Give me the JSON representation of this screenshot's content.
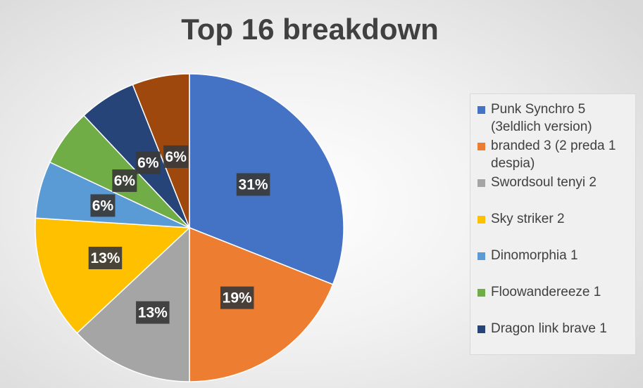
{
  "chart_data": {
    "type": "pie",
    "title": "Top 16 breakdown",
    "slices": [
      {
        "label": "Punk Synchro 5 (3eldlich version)",
        "value": 31,
        "display": "31%",
        "color": "#4472C4"
      },
      {
        "label": "branded 3 (2 preda 1 despia)",
        "value": 19,
        "display": "19%",
        "color": "#ED7D31"
      },
      {
        "label": "Swordsoul tenyi 2",
        "value": 13,
        "display": "13%",
        "color": "#A5A5A5"
      },
      {
        "label": "Sky striker 2",
        "value": 13,
        "display": "13%",
        "color": "#FFC000"
      },
      {
        "label": "Dinomorphia 1",
        "value": 6,
        "display": "6%",
        "color": "#5B9BD5"
      },
      {
        "label": "Floowandereeze 1",
        "value": 6,
        "display": "6%",
        "color": "#70AD47"
      },
      {
        "label": "Dragon link brave 1",
        "value": 6,
        "display": "6%",
        "color": "#264478"
      },
      {
        "label": "",
        "value": 6,
        "display": "6%",
        "color": "#9E480E"
      }
    ],
    "legend_position": "right"
  }
}
